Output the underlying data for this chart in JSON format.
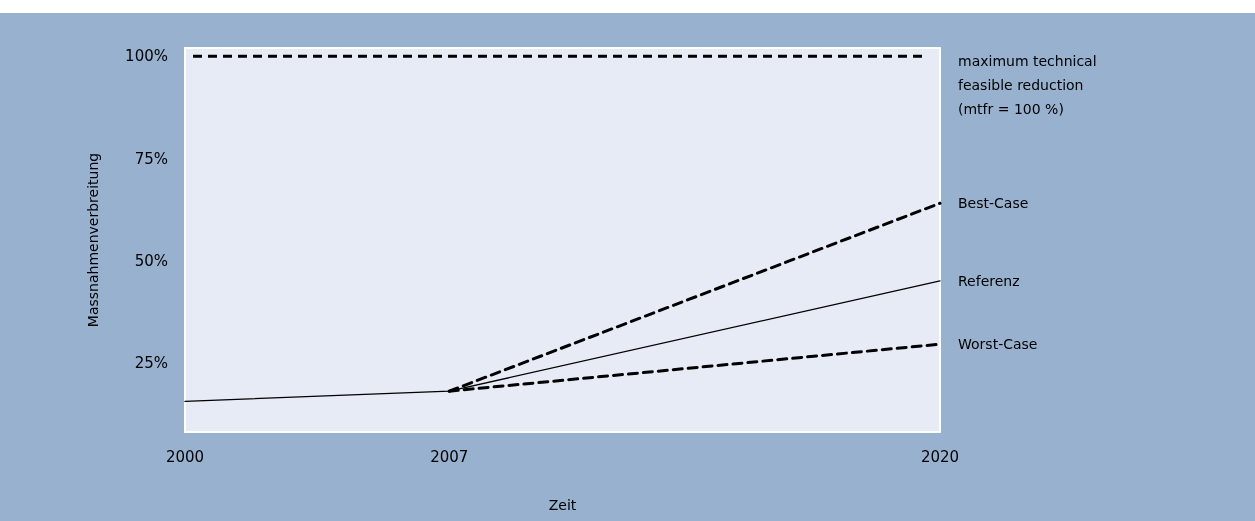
{
  "chart_data": {
    "type": "line",
    "xlabel": "Zeit",
    "ylabel": "Massnahmenverbreitung",
    "xlim": [
      2000,
      2020
    ],
    "xticks": [
      2000,
      2007,
      2020
    ],
    "ylim": [
      8,
      102
    ],
    "yticks": [
      {
        "value": 25,
        "label": "25%"
      },
      {
        "value": 50,
        "label": "50%"
      },
      {
        "value": 75,
        "label": "75%"
      },
      {
        "value": 100,
        "label": "100%"
      }
    ],
    "grid": false,
    "marker": "none",
    "series": [
      {
        "name": "Referenz",
        "color": "#000000",
        "x": [
          2000,
          2007,
          2020
        ],
        "values": [
          15.5,
          18,
          45
        ],
        "line_style": "solid"
      },
      {
        "name": "Best-Case",
        "color": "#000000",
        "x": [
          2007,
          2020
        ],
        "values": [
          18,
          64
        ],
        "line_style": "dashed"
      },
      {
        "name": "Worst-Case",
        "color": "#000000",
        "x": [
          2007,
          2020
        ],
        "values": [
          18,
          29.5
        ],
        "line_style": "dashed"
      }
    ],
    "ref_lines": [
      {
        "axis": "y",
        "value": 100,
        "label": "maximum technical feasible reduction (mtfr = 100 %)",
        "color": "#000000",
        "line_style": "dashed"
      }
    ]
  }
}
